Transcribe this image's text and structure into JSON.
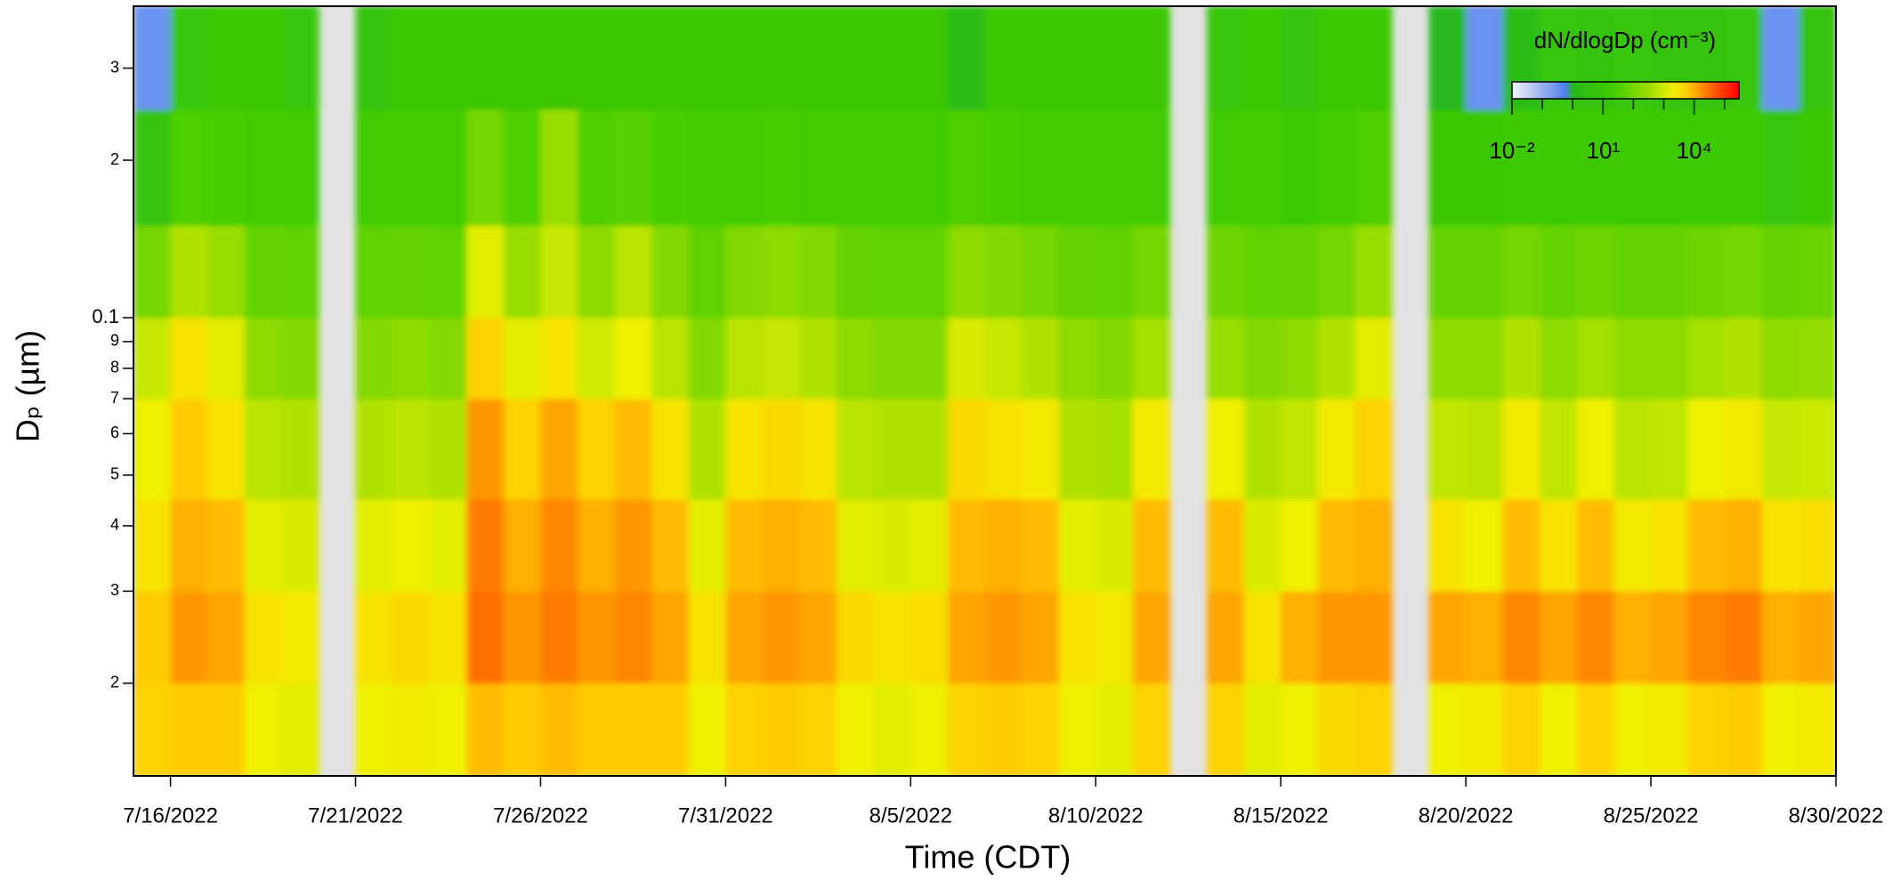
{
  "chart_data": {
    "type": "heatmap",
    "xlabel": "Time (CDT)",
    "ylabel": "Dₚ (µm)",
    "yscale": "log",
    "x": [
      "2022-07-15",
      "2022-07-16",
      "2022-07-17",
      "2022-07-18",
      "2022-07-19",
      "2022-07-20",
      "2022-07-21",
      "2022-07-22",
      "2022-07-23",
      "2022-07-24",
      "2022-07-25",
      "2022-07-26",
      "2022-07-27",
      "2022-07-28",
      "2022-07-29",
      "2022-07-30",
      "2022-07-31",
      "2022-08-01",
      "2022-08-02",
      "2022-08-03",
      "2022-08-04",
      "2022-08-05",
      "2022-08-06",
      "2022-08-07",
      "2022-08-08",
      "2022-08-09",
      "2022-08-10",
      "2022-08-11",
      "2022-08-12",
      "2022-08-13",
      "2022-08-14",
      "2022-08-15",
      "2022-08-16",
      "2022-08-17",
      "2022-08-18",
      "2022-08-19",
      "2022-08-20",
      "2022-08-21",
      "2022-08-22",
      "2022-08-23",
      "2022-08-24",
      "2022-08-25",
      "2022-08-26",
      "2022-08-27",
      "2022-08-28",
      "2022-08-29",
      "2022-08-30"
    ],
    "y": [
      0.0133,
      0.02,
      0.03,
      0.045,
      0.07,
      0.1,
      0.15,
      0.25,
      0.394
    ],
    "z": [
      [
        5000,
        6000,
        6000,
        2000,
        1500,
        null,
        2000,
        2500,
        2000,
        8000,
        6000,
        8000,
        6000,
        6000,
        6000,
        2000,
        5000,
        6000,
        5000,
        2000,
        1500,
        2000,
        5000,
        6000,
        5000,
        2000,
        1500,
        5000,
        null,
        5000,
        1500,
        2000,
        4000,
        5000,
        null,
        2000,
        2500,
        5000,
        2000,
        5000,
        2000,
        2500,
        5000,
        6000,
        2000,
        2500
      ],
      [
        6000,
        15000,
        12000,
        3000,
        2500,
        null,
        3000,
        4000,
        3000,
        30000,
        15000,
        25000,
        15000,
        20000,
        12000,
        3000,
        12000,
        15000,
        12000,
        4000,
        3000,
        3500,
        12000,
        15000,
        12000,
        3000,
        2500,
        12000,
        null,
        12000,
        3000,
        10000,
        15000,
        15000,
        null,
        12000,
        10000,
        20000,
        12000,
        20000,
        10000,
        12000,
        20000,
        25000,
        10000,
        12000
      ],
      [
        3000,
        10000,
        8000,
        1500,
        1200,
        null,
        1500,
        2000,
        1500,
        25000,
        10000,
        20000,
        10000,
        15000,
        8000,
        1500,
        8000,
        10000,
        8000,
        1500,
        1200,
        1500,
        8000,
        10000,
        8000,
        1500,
        1200,
        8000,
        null,
        8000,
        1200,
        2000,
        8000,
        10000,
        null,
        3000,
        2000,
        8000,
        3000,
        8000,
        2500,
        3000,
        8000,
        10000,
        3000,
        3500
      ],
      [
        2000,
        6000,
        3000,
        600,
        500,
        null,
        500,
        600,
        500,
        15000,
        5000,
        12000,
        5000,
        8000,
        3000,
        500,
        3000,
        4000,
        3000,
        600,
        500,
        500,
        4000,
        3000,
        2500,
        500,
        400,
        2500,
        null,
        2000,
        500,
        700,
        2500,
        5000,
        null,
        700,
        600,
        2500,
        700,
        2000,
        600,
        700,
        2000,
        2500,
        800,
        900
      ],
      [
        800,
        3000,
        1500,
        200,
        150,
        null,
        150,
        200,
        150,
        5000,
        1500,
        3000,
        1000,
        2000,
        600,
        150,
        600,
        800,
        500,
        200,
        150,
        150,
        1200,
        800,
        500,
        200,
        150,
        400,
        null,
        300,
        150,
        200,
        500,
        1500,
        null,
        200,
        200,
        500,
        200,
        400,
        200,
        200,
        400,
        500,
        200,
        250
      ],
      [
        100,
        500,
        300,
        60,
        50,
        null,
        50,
        60,
        50,
        1500,
        300,
        800,
        200,
        600,
        150,
        50,
        150,
        200,
        150,
        60,
        50,
        50,
        200,
        150,
        100,
        60,
        50,
        100,
        null,
        80,
        50,
        60,
        100,
        300,
        null,
        60,
        60,
        100,
        60,
        80,
        60,
        60,
        80,
        100,
        60,
        70
      ],
      [
        5,
        30,
        25,
        20,
        20,
        null,
        20,
        20,
        20,
        100,
        30,
        300,
        30,
        40,
        25,
        20,
        20,
        25,
        20,
        20,
        20,
        20,
        30,
        25,
        20,
        20,
        20,
        20,
        null,
        20,
        20,
        15,
        20,
        30,
        null,
        10,
        10,
        15,
        15,
        15,
        15,
        15,
        15,
        15,
        8,
        10
      ],
      [
        0.3,
        8,
        10,
        10,
        8,
        null,
        5,
        10,
        10,
        10,
        10,
        10,
        10,
        10,
        10,
        10,
        10,
        10,
        10,
        10,
        10,
        10,
        2,
        10,
        10,
        10,
        10,
        10,
        null,
        8,
        10,
        5,
        10,
        10,
        null,
        1,
        0.3,
        2,
        8,
        5,
        8,
        5,
        5,
        8,
        0.3,
        5
      ]
    ],
    "xlim": [
      "2022-07-15",
      "2022-08-30"
    ],
    "ylim": [
      0.0133,
      0.394
    ],
    "xticks": [
      {
        "value": "2022-07-16",
        "label": "7/16/2022"
      },
      {
        "value": "2022-07-21",
        "label": "7/21/2022"
      },
      {
        "value": "2022-07-26",
        "label": "7/26/2022"
      },
      {
        "value": "2022-07-31",
        "label": "7/31/2022"
      },
      {
        "value": "2022-08-05",
        "label": "8/5/2022"
      },
      {
        "value": "2022-08-10",
        "label": "8/10/2022"
      },
      {
        "value": "2022-08-15",
        "label": "8/15/2022"
      },
      {
        "value": "2022-08-20",
        "label": "8/20/2022"
      },
      {
        "value": "2022-08-25",
        "label": "8/25/2022"
      },
      {
        "value": "2022-08-30",
        "label": "8/30/2022"
      }
    ],
    "yticks": [
      {
        "value": 0.02,
        "label": "2"
      },
      {
        "value": 0.03,
        "label": "3"
      },
      {
        "value": 0.04,
        "label": "4"
      },
      {
        "value": 0.05,
        "label": "5"
      },
      {
        "value": 0.06,
        "label": "6"
      },
      {
        "value": 0.07,
        "label": "7"
      },
      {
        "value": 0.08,
        "label": "8"
      },
      {
        "value": 0.09,
        "label": "9"
      },
      0.1,
      {
        "value": 0.2,
        "label": "2"
      },
      {
        "value": 0.3,
        "label": "3"
      }
    ],
    "missing_color": "#e3e3e3",
    "colorbar": {
      "title": "dN/dlogDp (cm⁻³)",
      "scale": "log",
      "clim": [
        0.01,
        300000
      ],
      "ticks": [
        {
          "value": 0.01,
          "label": "10⁻²"
        },
        {
          "value": 10,
          "label": "10¹"
        },
        {
          "value": 10000,
          "label": "10⁴"
        }
      ],
      "minor_ticks": [
        0.1,
        1,
        100,
        1000,
        100000
      ],
      "colorscale": [
        [
          0.01,
          "#f4f4f8"
        ],
        [
          0.1,
          "#9ab0ef"
        ],
        [
          0.6,
          "#4a80f0"
        ],
        [
          1,
          "#26b81a"
        ],
        [
          20,
          "#40cc00"
        ],
        [
          300,
          "#99dd00"
        ],
        [
          2000,
          "#f0f000"
        ],
        [
          6000,
          "#ffcc00"
        ],
        [
          40000,
          "#ff6000"
        ],
        [
          300000,
          "#ff0000"
        ]
      ]
    }
  }
}
